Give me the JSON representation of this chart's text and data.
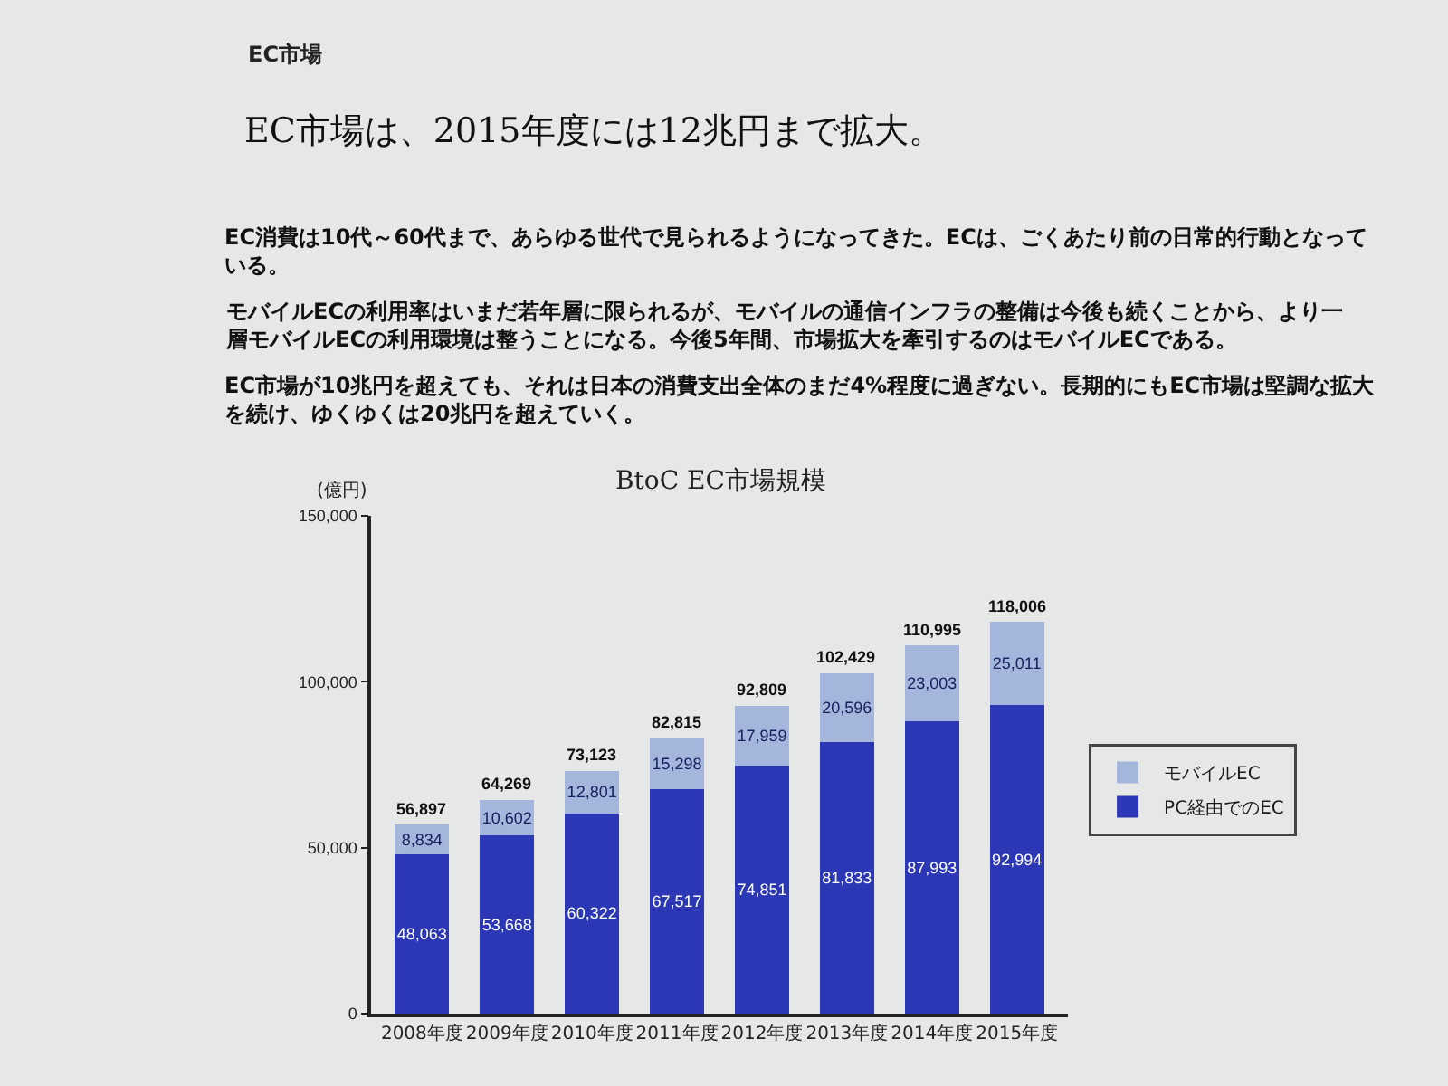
{
  "chart_data": {
    "type": "bar",
    "title": "EC市場は、2015年度には12兆円まで拡大。",
    "subtitle": "BtoC EC市場規模",
    "ylabel": "(億円)",
    "annotations": [
      "EC市場",
      "EC消費は10代～60代まで、あらゆる世代で見られるようになってきた。ECは、ごくあたり前の日常的行動となっている。",
      "モバイルECの利用率はいまだ若年層に限られるが、モバイルの通信インフラの整備は今後も続くことから、より一層モバイルECの利用環境は整うことになる。今後5年間、市場拡大を牽引するのはモバイルECである。",
      "EC市場が10兆円を超えても、それは日本の消費支出全体のまだ4%程度に過ぎない。長期的にもEC市場は堅調な拡大を続け、ゆくゆくは20兆円を超えていく。"
    ],
    "categories": [
      "2008年度",
      "2009年度",
      "2010年度",
      "2011年度",
      "2012年度",
      "2013年度",
      "2014年度",
      "2015年度"
    ],
    "stacked": true,
    "series": [
      {
        "name": "PC経由でのEC",
        "color": "#2b37b5",
        "values": [
          48063,
          53668,
          60322,
          67517,
          74851,
          81833,
          87993,
          92994
        ],
        "value_labels": [
          "48,063",
          "53,668",
          "60,322",
          "67,517",
          "74,851",
          "81,833",
          "87,993",
          "92,994"
        ]
      },
      {
        "name": "モバイルEC",
        "color": "#a4b6dc",
        "values": [
          8834,
          10602,
          12801,
          15298,
          17959,
          20596,
          23003,
          25011
        ],
        "value_labels": [
          "8,834",
          "10,602",
          "12,801",
          "15,298",
          "17,959",
          "20,596",
          "23,003",
          "25,011"
        ]
      }
    ],
    "totals": [
      "56,897",
      "64,269",
      "73,123",
      "82,815",
      "92,809",
      "102,429",
      "110,995",
      "118,006"
    ],
    "ylim": [
      0,
      150000
    ],
    "yticks": [
      0,
      {
        "value": 50000,
        "label": "50,000"
      },
      {
        "value": 100000,
        "label": "100,000"
      },
      {
        "value": 150000,
        "label": "150,000"
      }
    ],
    "legend": "right"
  }
}
